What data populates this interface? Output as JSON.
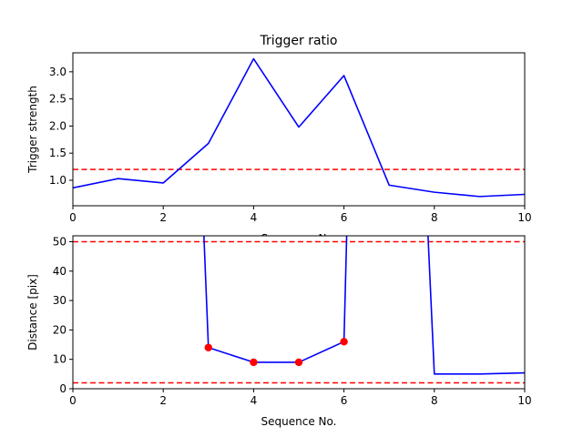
{
  "chart_data": [
    {
      "type": "line",
      "title": "Trigger ratio",
      "xlabel": "Sequence No.",
      "ylabel": "Trigger strength",
      "xlim": [
        0,
        10
      ],
      "ylim": [
        0.53,
        3.35
      ],
      "xticks": [
        "0",
        "2",
        "4",
        "6",
        "8",
        "10"
      ],
      "yticks": [
        "1.0",
        "1.5",
        "2.0",
        "2.5",
        "3.0"
      ],
      "grid": false,
      "series": [
        {
          "x": [
            0,
            1,
            2,
            3,
            4,
            5,
            6,
            7,
            8,
            9,
            10
          ],
          "y": [
            0.86,
            1.03,
            0.95,
            1.68,
            3.24,
            1.98,
            2.93,
            0.91,
            0.78,
            0.7,
            0.74
          ],
          "color": "#0000ff"
        }
      ],
      "reference_lines": [
        {
          "y": 1.2,
          "color": "#ff0000",
          "style": "dashed"
        }
      ]
    },
    {
      "type": "line",
      "title": "",
      "xlabel": "Sequence No.",
      "ylabel": "Distance [pix]",
      "xlim": [
        0,
        10
      ],
      "ylim": [
        0,
        52
      ],
      "xticks": [
        "0",
        "2",
        "4",
        "6",
        "8",
        "10"
      ],
      "yticks": [
        "0",
        "10",
        "20",
        "30",
        "40",
        "50"
      ],
      "grid": false,
      "series": [
        {
          "x": [
            2.9,
            3,
            4,
            5,
            6,
            6.06
          ],
          "y": [
            52,
            14,
            9,
            9,
            16,
            52
          ],
          "color": "#0000ff"
        },
        {
          "x": [
            7.86,
            8,
            9,
            10
          ],
          "y": [
            52,
            5,
            5,
            5.4
          ],
          "color": "#0000ff"
        }
      ],
      "markers": {
        "x": [
          3,
          4,
          5,
          6
        ],
        "y": [
          14,
          9,
          9,
          16
        ],
        "color": "#ff0000"
      },
      "reference_lines": [
        {
          "y": 50,
          "color": "#ff0000",
          "style": "dashed"
        },
        {
          "y": 2,
          "color": "#ff0000",
          "style": "dashed"
        }
      ]
    }
  ]
}
